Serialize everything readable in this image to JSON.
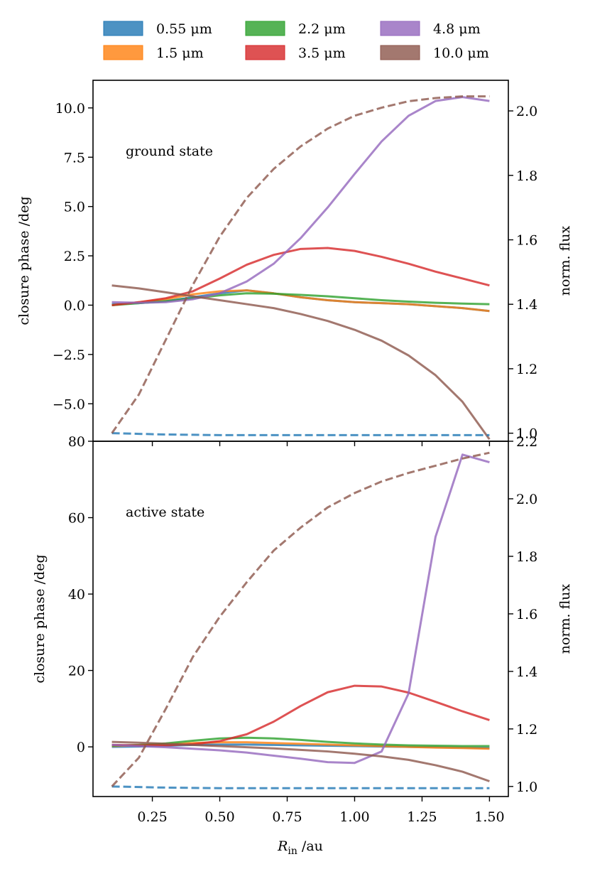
{
  "chart_data": [
    {
      "type": "line",
      "panel": "top",
      "annotation": "ground state",
      "ylabel_left": "closure phase /deg",
      "ylabel_right": "norm. flux",
      "ylim_left": [
        -6.9,
        11.4
      ],
      "ylim_right": [
        0.975,
        2.095
      ],
      "yticks_left": [
        -5.0,
        -2.5,
        0.0,
        2.5,
        5.0,
        7.5,
        10.0
      ],
      "yticks_left_labels": [
        "−5.0",
        "−2.5",
        "0.0",
        "2.5",
        "5.0",
        "7.5",
        "10.0"
      ],
      "yticks_right": [
        1.0,
        1.2,
        1.4,
        1.6,
        1.8,
        2.0
      ],
      "yticks_right_labels": [
        "1.0",
        "1.2",
        "1.4",
        "1.6",
        "1.8",
        "2.0"
      ],
      "x": [
        0.1,
        0.2,
        0.3,
        0.4,
        0.5,
        0.6,
        0.7,
        0.8,
        0.9,
        1.0,
        1.1,
        1.2,
        1.3,
        1.4,
        1.5
      ],
      "series": [
        {
          "name": "0.55 μm",
          "axis": "left",
          "values": [
            0.05,
            0.1,
            0.2,
            0.4,
            0.6,
            0.75,
            0.6,
            0.4,
            0.25,
            0.15,
            0.1,
            0.05,
            -0.05,
            -0.15,
            -0.3
          ]
        },
        {
          "name": "1.5 μm",
          "axis": "left",
          "values": [
            0.0,
            0.15,
            0.3,
            0.55,
            0.7,
            0.75,
            0.6,
            0.4,
            0.25,
            0.15,
            0.1,
            0.05,
            -0.05,
            -0.15,
            -0.3
          ]
        },
        {
          "name": "2.2 μm",
          "axis": "left",
          "values": [
            0.0,
            0.1,
            0.2,
            0.35,
            0.5,
            0.6,
            0.58,
            0.52,
            0.45,
            0.35,
            0.25,
            0.18,
            0.12,
            0.08,
            0.05
          ]
        },
        {
          "name": "3.5 μm",
          "axis": "left",
          "values": [
            0.0,
            0.15,
            0.35,
            0.7,
            1.35,
            2.05,
            2.55,
            2.85,
            2.9,
            2.75,
            2.45,
            2.1,
            1.7,
            1.35,
            1.0
          ]
        },
        {
          "name": "4.8 μm",
          "axis": "left",
          "values": [
            0.15,
            0.12,
            0.15,
            0.3,
            0.6,
            1.2,
            2.1,
            3.4,
            4.95,
            6.65,
            8.3,
            9.6,
            10.35,
            10.55,
            10.35
          ]
        },
        {
          "name": "10.0 μm",
          "axis": "left",
          "values": [
            1.0,
            0.85,
            0.65,
            0.45,
            0.25,
            0.05,
            -0.15,
            -0.45,
            -0.8,
            -1.25,
            -1.8,
            -2.55,
            -3.55,
            -4.9,
            -6.8
          ]
        },
        {
          "name": "0.55 μm flux",
          "axis": "right",
          "style": "dashed",
          "values": [
            1.0,
            0.998,
            0.996,
            0.995,
            0.994,
            0.994,
            0.994,
            0.994,
            0.994,
            0.994,
            0.994,
            0.994,
            0.994,
            0.994,
            0.994
          ]
        },
        {
          "name": "10.0 μm flux",
          "axis": "right",
          "style": "dashed",
          "values": [
            1.0,
            1.12,
            1.29,
            1.46,
            1.61,
            1.73,
            1.82,
            1.89,
            1.945,
            1.985,
            2.01,
            2.03,
            2.04,
            2.045,
            2.045
          ]
        }
      ]
    },
    {
      "type": "line",
      "panel": "bottom",
      "annotation": "active state",
      "ylabel_left": "closure phase /deg",
      "ylabel_right": "norm. flux",
      "xlabel_symbol": "R",
      "xlabel_sub": "in",
      "xlabel_unit": " /au",
      "xlim": [
        0.03,
        1.57
      ],
      "xticks": [
        0.25,
        0.5,
        0.75,
        1.0,
        1.25,
        1.5
      ],
      "xticks_labels": [
        "0.25",
        "0.50",
        "0.75",
        "1.00",
        "1.25",
        "1.50"
      ],
      "ylim_left": [
        -13,
        80
      ],
      "ylim_right": [
        0.965,
        2.2
      ],
      "yticks_left": [
        0,
        20,
        40,
        60,
        80
      ],
      "yticks_left_labels": [
        "0",
        "20",
        "40",
        "60",
        "80"
      ],
      "yticks_right": [
        1.0,
        1.2,
        1.4,
        1.6,
        1.8,
        2.0,
        2.2
      ],
      "yticks_right_labels": [
        "1.0",
        "1.2",
        "1.4",
        "1.6",
        "1.8",
        "2.0",
        "2.2"
      ],
      "x": [
        0.1,
        0.2,
        0.3,
        0.4,
        0.5,
        0.6,
        0.7,
        0.8,
        0.9,
        1.0,
        1.1,
        1.2,
        1.3,
        1.4,
        1.5
      ],
      "series": [
        {
          "name": "0.55 μm",
          "axis": "left",
          "values": [
            0.0,
            0.1,
            0.3,
            0.5,
            0.6,
            0.6,
            0.5,
            0.4,
            0.3,
            0.2,
            0.1,
            0.0,
            -0.1,
            -0.2,
            -0.3
          ]
        },
        {
          "name": "1.5 μm",
          "axis": "left",
          "values": [
            0.2,
            0.4,
            0.7,
            1.0,
            1.2,
            1.2,
            1.0,
            0.8,
            0.6,
            0.4,
            0.2,
            0.0,
            -0.2,
            -0.3,
            -0.5
          ]
        },
        {
          "name": "2.2 μm",
          "axis": "left",
          "values": [
            0.3,
            0.5,
            0.9,
            1.6,
            2.2,
            2.4,
            2.2,
            1.8,
            1.3,
            0.9,
            0.6,
            0.4,
            0.3,
            0.2,
            0.2
          ]
        },
        {
          "name": "3.5 μm",
          "axis": "left",
          "values": [
            0.5,
            0.4,
            0.4,
            0.7,
            1.5,
            3.3,
            6.6,
            10.7,
            14.3,
            16.0,
            15.8,
            14.2,
            11.8,
            9.3,
            7.0
          ]
        },
        {
          "name": "4.8 μm",
          "axis": "left",
          "values": [
            0.5,
            0.2,
            -0.1,
            -0.5,
            -0.9,
            -1.5,
            -2.3,
            -3.1,
            -4.0,
            -4.2,
            -1.2,
            14.0,
            55.0,
            76.5,
            74.5
          ]
        },
        {
          "name": "10.0 μm",
          "axis": "left",
          "values": [
            1.3,
            1.1,
            0.8,
            0.5,
            0.2,
            -0.1,
            -0.4,
            -0.8,
            -1.2,
            -1.8,
            -2.5,
            -3.4,
            -4.8,
            -6.5,
            -9.0
          ]
        },
        {
          "name": "0.55 μm flux",
          "axis": "right",
          "style": "dashed",
          "values": [
            1.0,
            0.998,
            0.996,
            0.995,
            0.994,
            0.994,
            0.994,
            0.994,
            0.994,
            0.994,
            0.994,
            0.994,
            0.994,
            0.994,
            0.994
          ]
        },
        {
          "name": "10.0 μm flux",
          "axis": "right",
          "style": "dashed",
          "values": [
            1.0,
            1.1,
            1.27,
            1.45,
            1.59,
            1.71,
            1.82,
            1.9,
            1.97,
            2.02,
            2.06,
            2.09,
            2.115,
            2.14,
            2.16
          ]
        }
      ]
    }
  ],
  "legend": {
    "placement": "top, above plots, 3 columns",
    "entries": [
      {
        "label": "0.55 μm",
        "color": "#1f77b4"
      },
      {
        "label": "1.5 μm",
        "color": "#ff7f0e"
      },
      {
        "label": "2.2 μm",
        "color": "#2ca02c"
      },
      {
        "label": "3.5 μm",
        "color": "#d62728"
      },
      {
        "label": "4.8 μm",
        "color": "#9467bd"
      },
      {
        "label": "10.0 μm",
        "color": "#8c564b"
      }
    ]
  },
  "colors": {
    "0.55 μm": "#1f77b4",
    "1.5 μm": "#ff7f0e",
    "2.2 μm": "#2ca02c",
    "3.5 μm": "#d62728",
    "4.8 μm": "#9467bd",
    "10.0 μm": "#8c564b",
    "0.55 μm flux": "#1f77b4",
    "10.0 μm flux": "#8c564b"
  }
}
